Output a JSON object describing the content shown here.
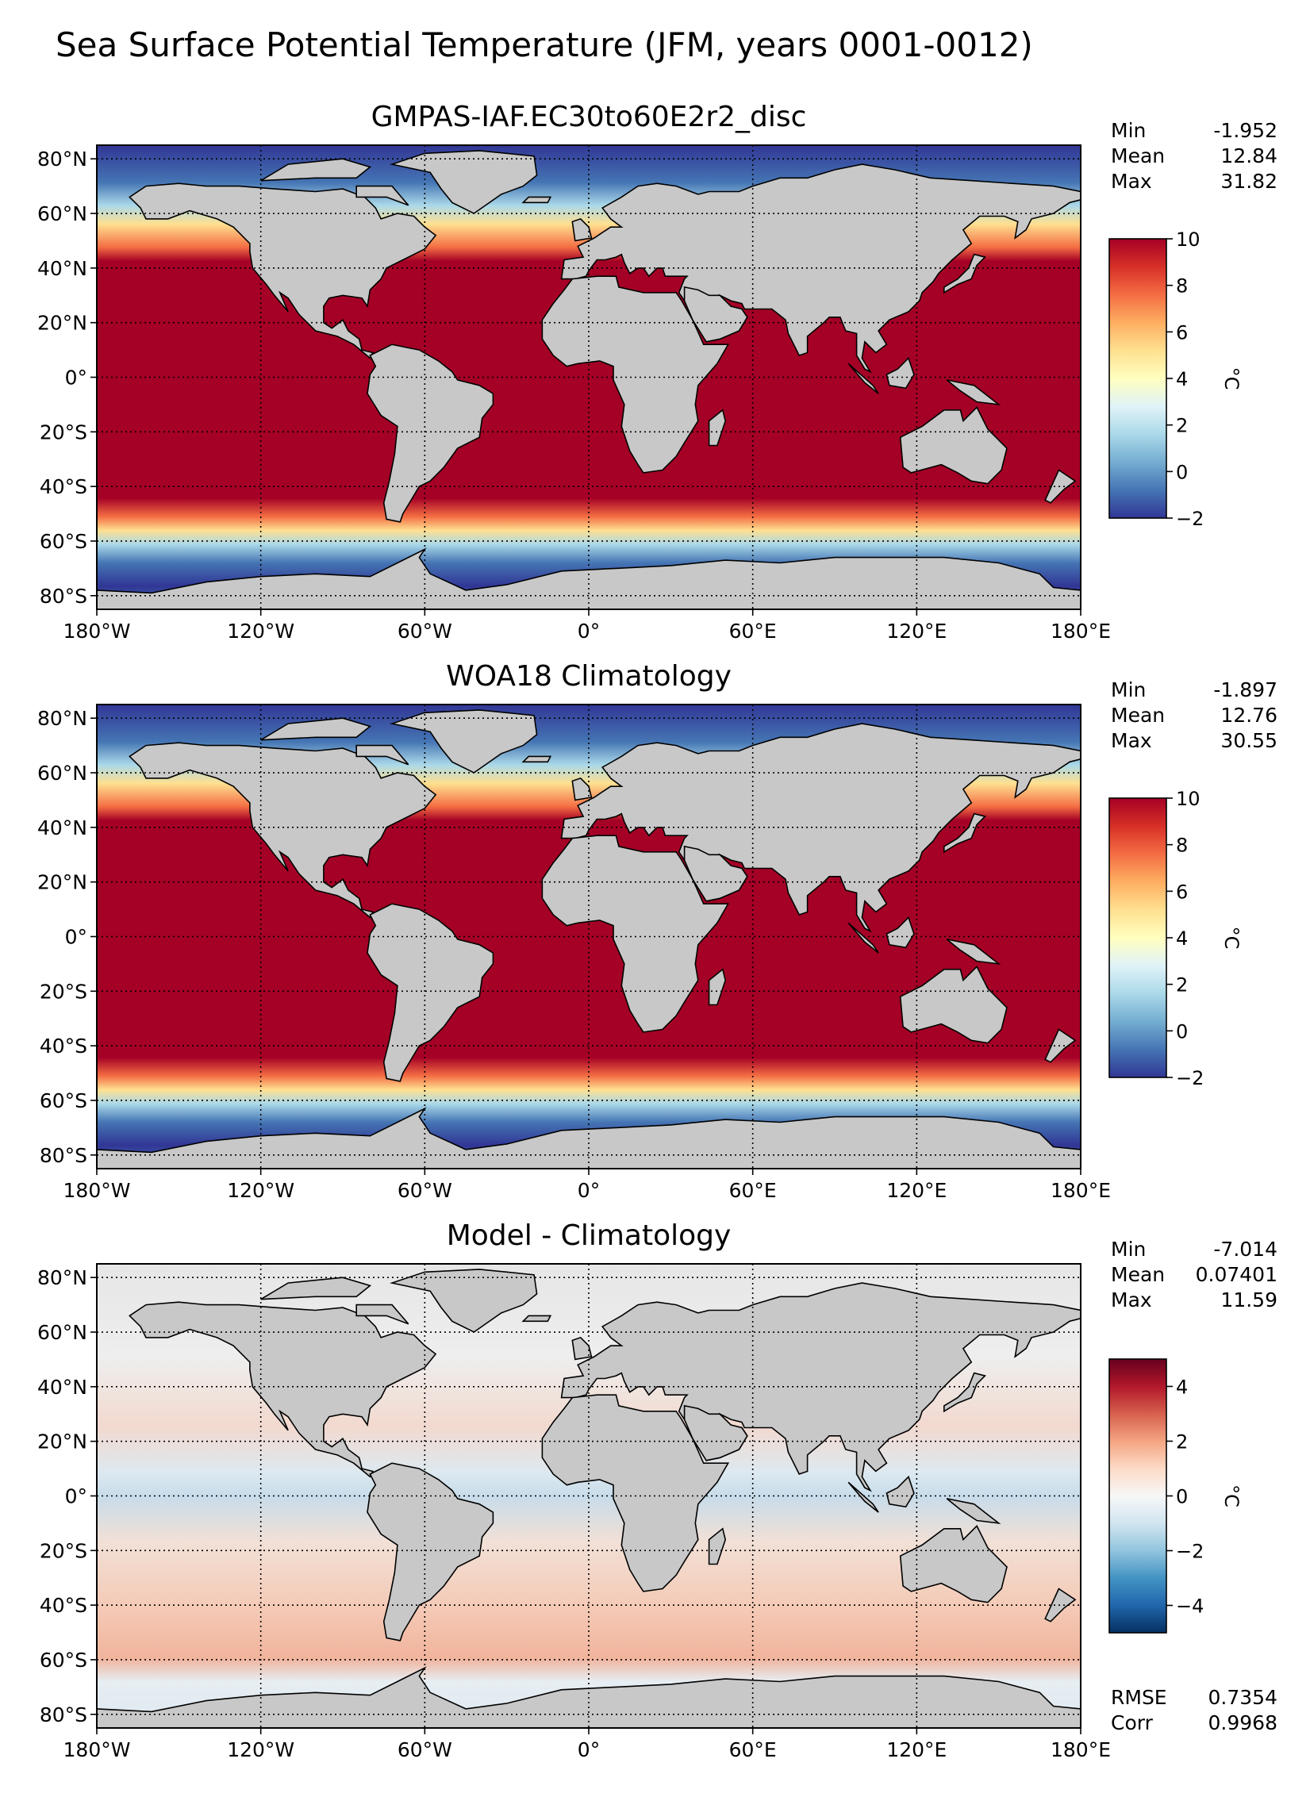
{
  "figure": {
    "title": "Sea Surface Potential Temperature (JFM, years 0001-0012)"
  },
  "colors": {
    "warm_dark": "#a50026",
    "land": "#c8c8c8",
    "frame": "#000000"
  },
  "chart_data": [
    {
      "type": "heatmap",
      "title": "GMPAS-IAF.EC30to60E2r2_disc",
      "field": "sea surface potential temperature",
      "colormap": "RdYlBu_r",
      "xticks": [
        "180°W",
        "120°W",
        "60°W",
        "0°",
        "60°E",
        "120°E",
        "180°E"
      ],
      "yticks": [
        "80°N",
        "60°N",
        "40°N",
        "20°N",
        "0°",
        "20°S",
        "40°S",
        "60°S",
        "80°S"
      ],
      "xlim": [
        -180,
        180
      ],
      "ylim": [
        -85,
        85
      ],
      "grid": true,
      "colorbar": {
        "ticks": [
          "10",
          "8",
          "6",
          "4",
          "2",
          "0",
          "−2"
        ],
        "range": [
          -2,
          10
        ],
        "label": "°C"
      },
      "stats": [
        {
          "label": "Min",
          "value": "-1.952"
        },
        {
          "label": "Mean",
          "value": "12.84"
        },
        {
          "label": "Max",
          "value": "31.82"
        }
      ]
    },
    {
      "type": "heatmap",
      "title": "WOA18 Climatology",
      "field": "sea surface potential temperature",
      "colormap": "RdYlBu_r",
      "xticks": [
        "180°W",
        "120°W",
        "60°W",
        "0°",
        "60°E",
        "120°E",
        "180°E"
      ],
      "yticks": [
        "80°N",
        "60°N",
        "40°N",
        "20°N",
        "0°",
        "20°S",
        "40°S",
        "60°S",
        "80°S"
      ],
      "xlim": [
        -180,
        180
      ],
      "ylim": [
        -85,
        85
      ],
      "grid": true,
      "colorbar": {
        "ticks": [
          "10",
          "8",
          "6",
          "4",
          "2",
          "0",
          "−2"
        ],
        "range": [
          -2,
          10
        ],
        "label": "°C"
      },
      "stats": [
        {
          "label": "Min",
          "value": "-1.897"
        },
        {
          "label": "Mean",
          "value": "12.76"
        },
        {
          "label": "Max",
          "value": "30.55"
        }
      ]
    },
    {
      "type": "heatmap",
      "title": "Model - Climatology",
      "field": "difference",
      "colormap": "RdBu_r",
      "xticks": [
        "180°W",
        "120°W",
        "60°W",
        "0°",
        "60°E",
        "120°E",
        "180°E"
      ],
      "yticks": [
        "80°N",
        "60°N",
        "40°N",
        "20°N",
        "0°",
        "20°S",
        "40°S",
        "60°S",
        "80°S"
      ],
      "xlim": [
        -180,
        180
      ],
      "ylim": [
        -85,
        85
      ],
      "grid": true,
      "colorbar": {
        "ticks": [
          "4",
          "2",
          "0",
          "−2",
          "−4"
        ],
        "range": [
          -5,
          5
        ],
        "label": "°C"
      },
      "stats": [
        {
          "label": "Min",
          "value": "-7.014"
        },
        {
          "label": "Mean",
          "value": "0.07401"
        },
        {
          "label": "Max",
          "value": "11.59"
        }
      ],
      "stats2": [
        {
          "label": "RMSE",
          "value": "0.7354"
        },
        {
          "label": "Corr",
          "value": "0.9968"
        }
      ]
    }
  ]
}
